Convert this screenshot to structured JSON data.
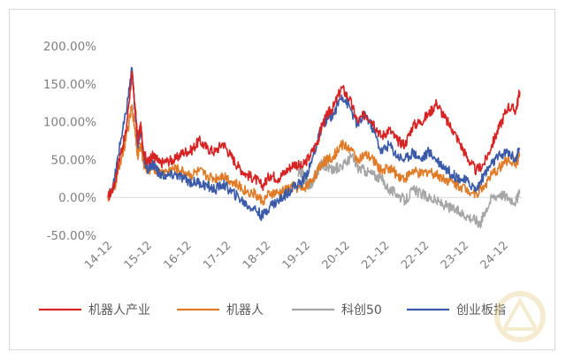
{
  "chart_data": {
    "type": "line",
    "title": "",
    "xlabel": "",
    "ylabel": "",
    "y_tick_labels": [
      "200.00%",
      "150.00%",
      "100.00%",
      "50.00%",
      "0.00%",
      "-50.00%"
    ],
    "y_ticks": [
      200,
      150,
      100,
      50,
      0,
      -50
    ],
    "ylim": [
      -50,
      200
    ],
    "x_tick_labels": [
      "14-12",
      "15-12",
      "16-12",
      "17-12",
      "18-12",
      "19-12",
      "20-12",
      "21-12",
      "22-12",
      "23-12",
      "24-12"
    ],
    "x_range_years": [
      2014.75,
      2025.25
    ],
    "grid": false,
    "legend_position": "bottom",
    "series": [
      {
        "name": "机器人产业",
        "color": "#d62424",
        "x": [
          2014.8,
          2014.95,
          2015.1,
          2015.25,
          2015.4,
          2015.48,
          2015.55,
          2015.62,
          2015.7,
          2015.8,
          2015.9,
          2016.0,
          2016.1,
          2016.3,
          2016.5,
          2016.7,
          2016.9,
          2017.1,
          2017.3,
          2017.5,
          2017.7,
          2017.9,
          2018.1,
          2018.3,
          2018.5,
          2018.7,
          2018.9,
          2019.1,
          2019.3,
          2019.5,
          2019.7,
          2019.9,
          2020.1,
          2020.2,
          2020.35,
          2020.5,
          2020.7,
          2020.9,
          2021.1,
          2021.3,
          2021.5,
          2021.7,
          2021.9,
          2022.1,
          2022.3,
          2022.5,
          2022.7,
          2022.9,
          2023.1,
          2023.3,
          2023.5,
          2023.7,
          2023.9,
          2024.1,
          2024.3,
          2024.5,
          2024.7,
          2024.9,
          2025.1,
          2025.2
        ],
        "y": [
          0,
          15,
          55,
          85,
          165,
          120,
          75,
          95,
          60,
          45,
          55,
          52,
          45,
          48,
          50,
          60,
          62,
          75,
          65,
          60,
          72,
          55,
          40,
          30,
          25,
          15,
          30,
          25,
          35,
          45,
          40,
          55,
          75,
          95,
          110,
          120,
          145,
          130,
          100,
          110,
          100,
          80,
          90,
          75,
          70,
          95,
          100,
          110,
          125,
          105,
          90,
          70,
          50,
          35,
          45,
          70,
          95,
          120,
          115,
          140
        ]
      },
      {
        "name": "机器人",
        "color": "#e07b28",
        "x": [
          2014.8,
          2014.95,
          2015.1,
          2015.25,
          2015.4,
          2015.48,
          2015.55,
          2015.62,
          2015.7,
          2015.8,
          2015.9,
          2016.0,
          2016.1,
          2016.3,
          2016.5,
          2016.7,
          2016.9,
          2017.1,
          2017.3,
          2017.5,
          2017.7,
          2017.9,
          2018.1,
          2018.3,
          2018.5,
          2018.7,
          2018.9,
          2019.1,
          2019.3,
          2019.5,
          2019.7,
          2019.9,
          2020.1,
          2020.2,
          2020.35,
          2020.5,
          2020.7,
          2020.9,
          2021.1,
          2021.3,
          2021.5,
          2021.7,
          2021.9,
          2022.1,
          2022.3,
          2022.5,
          2022.7,
          2022.9,
          2023.1,
          2023.3,
          2023.5,
          2023.7,
          2023.9,
          2024.1,
          2024.3,
          2024.5,
          2024.7,
          2024.9,
          2025.1,
          2025.2
        ],
        "y": [
          0,
          10,
          45,
          75,
          120,
          90,
          55,
          70,
          45,
          35,
          40,
          38,
          32,
          35,
          38,
          34,
          30,
          35,
          28,
          25,
          30,
          22,
          15,
          8,
          5,
          -5,
          5,
          5,
          10,
          15,
          10,
          20,
          35,
          45,
          50,
          55,
          70,
          65,
          50,
          55,
          50,
          35,
          40,
          30,
          25,
          35,
          30,
          35,
          30,
          25,
          20,
          15,
          10,
          5,
          15,
          30,
          40,
          50,
          45,
          55
        ]
      },
      {
        "name": "科创50",
        "color": "#a6a6a6",
        "x": [
          2019.6,
          2019.7,
          2019.8,
          2019.9,
          2020.0,
          2020.1,
          2020.2,
          2020.35,
          2020.5,
          2020.6,
          2020.8,
          2020.95,
          2021.1,
          2021.3,
          2021.5,
          2021.7,
          2021.9,
          2022.1,
          2022.3,
          2022.5,
          2022.7,
          2022.9,
          2023.1,
          2023.3,
          2023.5,
          2023.7,
          2023.9,
          2024.1,
          2024.2,
          2024.3,
          2024.5,
          2024.7,
          2024.9,
          2025.1,
          2025.2
        ],
        "y": [
          30,
          35,
          20,
          15,
          25,
          35,
          45,
          40,
          35,
          40,
          45,
          55,
          40,
          35,
          30,
          25,
          10,
          5,
          -5,
          10,
          5,
          0,
          -5,
          -10,
          -15,
          -20,
          -25,
          -30,
          -35,
          -20,
          0,
          5,
          0,
          -5,
          5
        ]
      },
      {
        "name": "创业板指",
        "color": "#3b5ba9",
        "x": [
          2014.8,
          2014.95,
          2015.1,
          2015.25,
          2015.4,
          2015.48,
          2015.55,
          2015.62,
          2015.7,
          2015.8,
          2015.9,
          2016.0,
          2016.1,
          2016.3,
          2016.5,
          2016.7,
          2016.9,
          2017.1,
          2017.3,
          2017.5,
          2017.7,
          2017.9,
          2018.1,
          2018.3,
          2018.5,
          2018.7,
          2018.9,
          2019.1,
          2019.3,
          2019.5,
          2019.7,
          2019.9,
          2020.1,
          2020.2,
          2020.35,
          2020.5,
          2020.7,
          2020.9,
          2021.1,
          2021.3,
          2021.5,
          2021.7,
          2021.9,
          2022.1,
          2022.3,
          2022.5,
          2022.7,
          2022.9,
          2023.1,
          2023.3,
          2023.5,
          2023.7,
          2023.9,
          2024.1,
          2024.3,
          2024.5,
          2024.7,
          2024.9,
          2025.1,
          2025.2
        ],
        "y": [
          0,
          20,
          70,
          110,
          170,
          115,
          70,
          90,
          55,
          35,
          45,
          40,
          30,
          28,
          30,
          25,
          20,
          20,
          15,
          10,
          18,
          8,
          0,
          -10,
          -15,
          -25,
          -10,
          -5,
          5,
          15,
          20,
          40,
          75,
          95,
          105,
          110,
          135,
          120,
          95,
          110,
          90,
          60,
          70,
          55,
          50,
          60,
          50,
          60,
          50,
          40,
          30,
          25,
          20,
          10,
          30,
          45,
          55,
          60,
          50,
          65
        ]
      }
    ]
  }
}
